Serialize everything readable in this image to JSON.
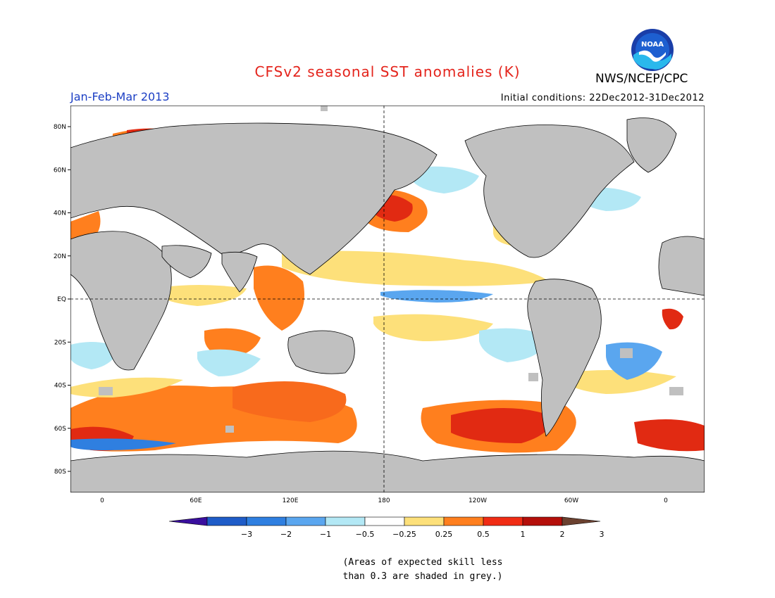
{
  "header": {
    "title": "CFSv2 seasonal SST anomalies (K)",
    "period": "Jan-Feb-Mar 2013",
    "initial_conditions": "Initial conditions: 22Dec2012-31Dec2012",
    "agency": "NWS/NCEP/CPC",
    "logo_text": "NOAA"
  },
  "map": {
    "lat_labels": [
      "80N",
      "60N",
      "40N",
      "20N",
      "EQ",
      "20S",
      "40S",
      "60S",
      "80S"
    ],
    "lon_labels": [
      "0",
      "60E",
      "120E",
      "180",
      "120W",
      "60W",
      "0"
    ]
  },
  "colorbar": {
    "labels": [
      "-3",
      "-2",
      "-1",
      "-0.5",
      "-0.25",
      "0.25",
      "0.5",
      "1",
      "2",
      "3"
    ],
    "colors": [
      "#3a0f9e",
      "#1f5cc8",
      "#2f7fe0",
      "#5aa6ef",
      "#b3e8f5",
      "#ffffff",
      "#fde07a",
      "#ff7f1e",
      "#f02c14",
      "#b40f0a",
      "#6b4130"
    ]
  },
  "note": {
    "line1": "(Areas of expected skill less",
    "line2": "than 0.3 are shaded in grey.)"
  }
}
